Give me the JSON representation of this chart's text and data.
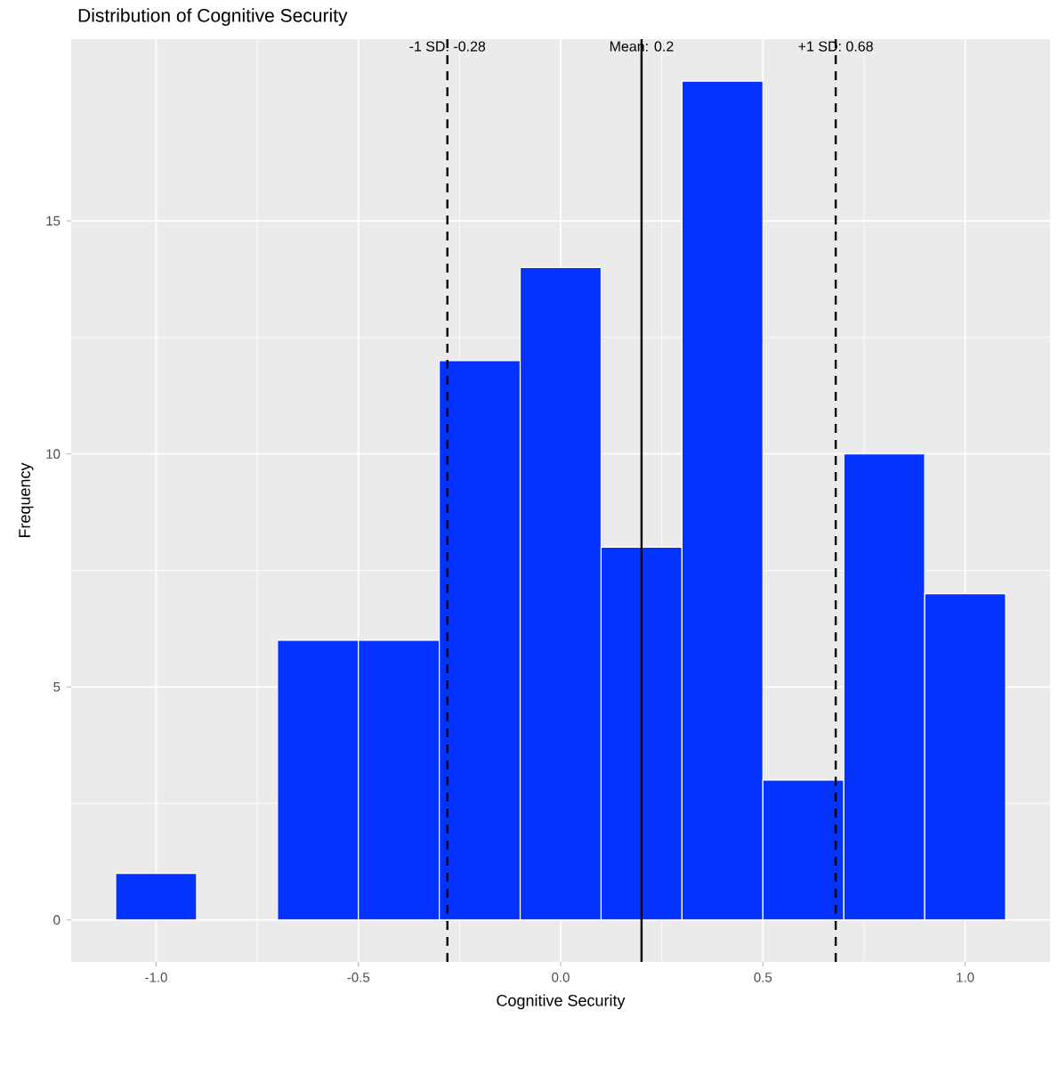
{
  "chart_data": {
    "type": "histogram",
    "title": "Distribution of Cognitive Security",
    "xlabel": "Cognitive Security",
    "ylabel": "Frequency",
    "bins": [
      -1.1,
      -0.9,
      -0.7,
      -0.5,
      -0.3,
      -0.1,
      0.1,
      0.3,
      0.5,
      0.7,
      0.9,
      1.1
    ],
    "values": [
      1,
      0,
      6,
      6,
      12,
      14,
      8,
      18,
      3,
      10,
      7
    ],
    "color": "#0433ff",
    "xlim": [
      -1.21,
      1.21
    ],
    "ylim": [
      -0.9,
      18.9
    ],
    "xticks": [
      {
        "value": -1.0,
        "label": "-1.0"
      },
      {
        "value": -0.5,
        "label": "-0.5"
      },
      {
        "value": 0.0,
        "label": "0.0"
      },
      {
        "value": 0.5,
        "label": "0.5"
      },
      {
        "value": 1.0,
        "label": "1.0"
      }
    ],
    "yticks": [
      0,
      5,
      10,
      15
    ],
    "grid": true,
    "ref_lines": [
      {
        "axis": "x",
        "value": -0.28,
        "label": "-1 SD: -0.28",
        "line_style": "dashed",
        "color": "#000000"
      },
      {
        "axis": "x",
        "value": 0.2,
        "label": "Mean: 0.2",
        "line_style": "solid",
        "color": "#000000"
      },
      {
        "axis": "x",
        "value": 0.68,
        "label": "+1 SD: 0.68",
        "line_style": "dashed",
        "color": "#000000"
      }
    ]
  }
}
